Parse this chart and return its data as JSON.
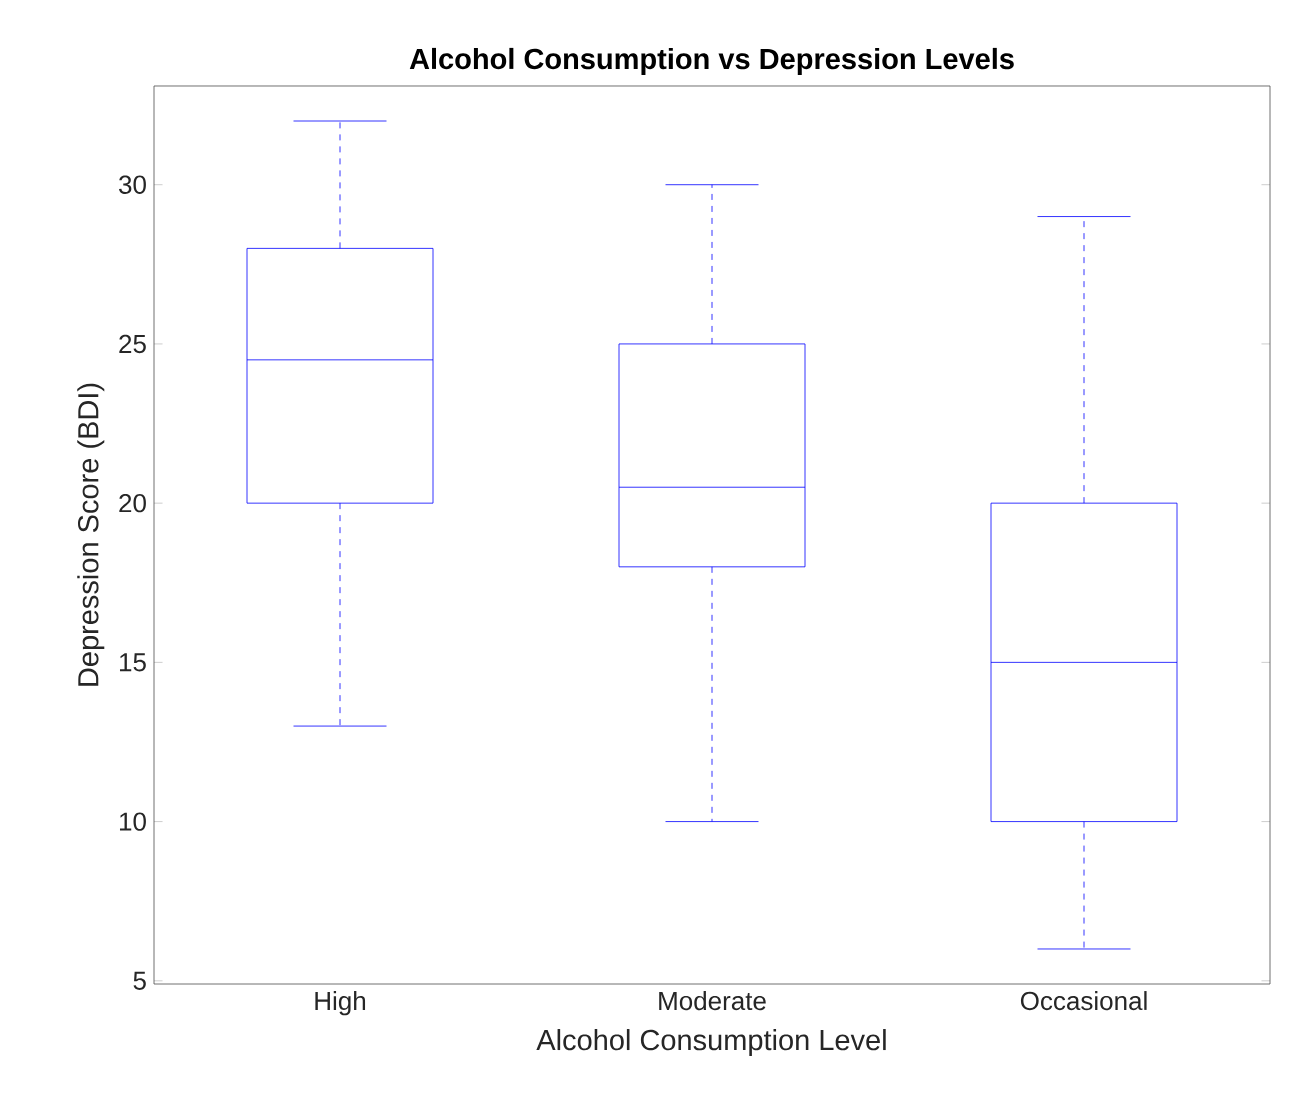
{
  "chart_data": {
    "type": "box",
    "title": "Alcohol Consumption vs Depression Levels",
    "xlabel": "Alcohol Consumption Level",
    "ylabel": "Depression Score (BDI)",
    "categories": [
      "High",
      "Moderate",
      "Occasional"
    ],
    "boxes": [
      {
        "low": 13,
        "q1": 20,
        "median": 24.5,
        "q3": 28,
        "high": 32
      },
      {
        "low": 10,
        "q1": 18,
        "median": 20.5,
        "q3": 25,
        "high": 30
      },
      {
        "low": 6,
        "q1": 10,
        "median": 15,
        "q3": 20,
        "high": 29
      }
    ],
    "color": "#0000ff",
    "ylim": [
      4.9,
      33.1
    ],
    "yticks": [
      5,
      10,
      15,
      20,
      25,
      30
    ],
    "grid": false
  }
}
